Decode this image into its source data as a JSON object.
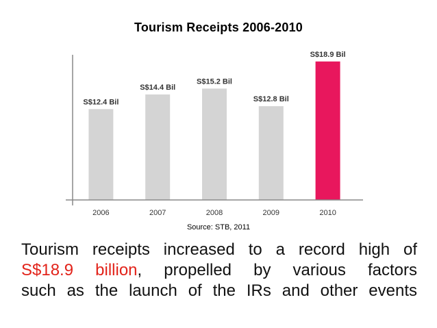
{
  "chart_data": {
    "type": "bar",
    "title": "Tourism Receipts 2006-2010",
    "categories": [
      "2006",
      "2007",
      "2008",
      "2009",
      "2010"
    ],
    "values": [
      12.4,
      14.4,
      15.2,
      12.8,
      18.9
    ],
    "data_labels": [
      "S$12.4 Bil",
      "S$14.4 Bil",
      "S$15.2 Bil",
      "S$12.8 Bil",
      "S$18.9 Bil"
    ],
    "ylim": [
      0,
      20
    ],
    "grid": false,
    "colors": {
      "bar": "#d4d4d4",
      "highlight_bar": "#e8175d",
      "axis": "#888888"
    },
    "highlight_index": 4
  },
  "source": "Source: STB, 2011",
  "caption": {
    "line1": "Tourism receipts increased to a record high of",
    "highlight": "S$18.9 billion",
    "line2_rest": ", propelled by various factors",
    "line3": "such as the launch of the IRs and other events",
    "highlight_color": "#e2231a"
  }
}
